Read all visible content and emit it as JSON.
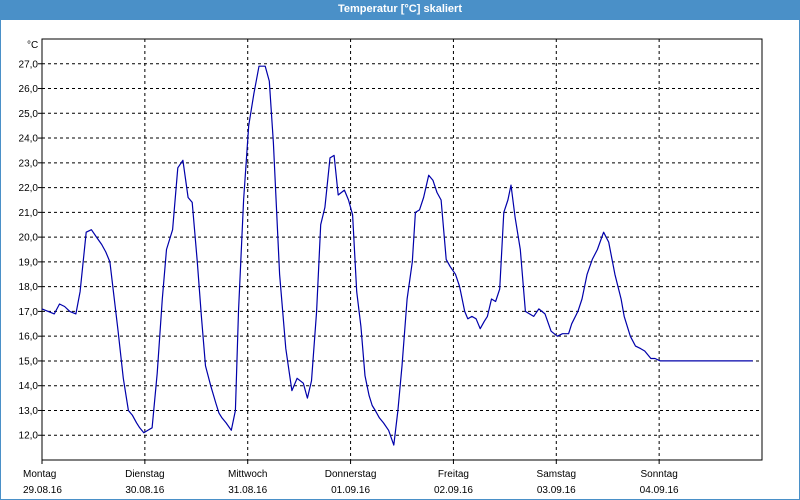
{
  "window": {
    "title": "Temperatur [°C] skaliert"
  },
  "chart_data": {
    "type": "line",
    "title": "Temperatur [°C] skaliert",
    "ylabel": "°C",
    "xlabel": "",
    "ylim": [
      11.0,
      28.0
    ],
    "yticks": [
      "12,0",
      "13,0",
      "14,0",
      "15,0",
      "16,0",
      "17,0",
      "18,0",
      "19,0",
      "20,0",
      "21,0",
      "22,0",
      "23,0",
      "24,0",
      "25,0",
      "26,0",
      "27,0"
    ],
    "xlim": [
      0,
      7
    ],
    "day_ticks": [
      {
        "day": "Montag",
        "date": "29.08.16"
      },
      {
        "day": "Dienstag",
        "date": "30.08.16"
      },
      {
        "day": "Mittwoch",
        "date": "31.08.16"
      },
      {
        "day": "Donnerstag",
        "date": "01.09.16"
      },
      {
        "day": "Freitag",
        "date": "02.09.16"
      },
      {
        "day": "Samstag",
        "date": "03.09.16"
      },
      {
        "day": "Sonntag",
        "date": "04.09.16"
      }
    ],
    "grid": true,
    "line_color": "#0000aa",
    "series": [
      {
        "x": [
          0.0,
          0.06,
          0.12,
          0.17,
          0.22,
          0.27,
          0.33,
          0.37,
          0.43,
          0.48,
          0.53,
          0.58,
          0.62,
          0.66,
          0.7,
          0.74,
          0.79,
          0.84,
          0.88,
          0.92,
          0.95,
          0.99,
          1.03,
          1.07,
          1.12,
          1.17,
          1.21,
          1.27,
          1.32,
          1.37,
          1.42,
          1.46,
          1.51,
          1.55,
          1.59,
          1.64,
          1.69,
          1.72,
          1.75,
          1.79,
          1.84,
          1.88,
          1.91,
          1.96,
          2.01,
          2.06,
          2.11,
          2.17,
          2.21,
          2.25,
          2.31,
          2.37,
          2.43,
          2.48,
          2.54,
          2.58,
          2.62,
          2.67,
          2.71,
          2.75,
          2.8,
          2.84,
          2.88,
          2.94,
          2.98,
          3.02,
          3.06,
          3.1,
          3.14,
          3.18,
          3.21,
          3.24,
          3.28,
          3.32,
          3.37,
          3.42,
          3.46,
          3.5,
          3.55,
          3.6,
          3.63,
          3.67,
          3.71,
          3.76,
          3.8,
          3.84,
          3.88,
          3.93,
          3.97,
          4.02,
          4.06,
          4.11,
          4.14,
          4.18,
          4.22,
          4.26,
          4.3,
          4.33,
          4.37,
          4.41,
          4.45,
          4.49,
          4.53,
          4.56,
          4.6,
          4.65,
          4.7,
          4.74,
          4.78,
          4.83,
          4.89,
          4.95,
          5.01,
          5.06,
          5.12,
          5.15,
          5.21,
          5.25,
          5.3,
          5.35,
          5.4,
          5.46,
          5.51,
          5.57,
          5.63,
          5.66,
          5.72,
          5.77,
          5.82,
          5.86,
          5.92,
          5.96,
          6.01,
          6.06,
          6.11,
          6.17,
          6.22,
          6.27,
          6.32,
          6.38,
          6.44,
          6.48,
          6.53,
          6.58,
          6.62,
          6.67,
          6.71,
          6.75,
          6.8,
          6.85,
          6.91,
          6.96,
          7.0
        ],
        "y": [
          17.1,
          17.0,
          16.9,
          17.3,
          17.2,
          17.0,
          16.9,
          17.8,
          20.2,
          20.3,
          20.0,
          19.7,
          19.4,
          19.0,
          17.6,
          16.2,
          14.3,
          13.0,
          12.8,
          12.5,
          12.3,
          12.1,
          12.2,
          12.3,
          14.5,
          17.5,
          19.5,
          20.3,
          22.8,
          23.1,
          21.6,
          21.4,
          19.0,
          16.8,
          14.8,
          14.0,
          13.3,
          12.9,
          12.7,
          12.5,
          12.2,
          13.0,
          17.0,
          21.5,
          24.5,
          25.8,
          26.9,
          26.9,
          26.3,
          23.8,
          18.5,
          15.5,
          13.8,
          14.3,
          14.1,
          13.5,
          14.2,
          17.0,
          20.5,
          21.2,
          23.2,
          23.3,
          21.7,
          21.9,
          21.5,
          20.9,
          17.8,
          16.4,
          14.4,
          13.6,
          13.2,
          13.0,
          12.7,
          12.5,
          12.2,
          11.6,
          13.0,
          14.8,
          17.5,
          19.0,
          21.0,
          21.1,
          21.6,
          22.5,
          22.3,
          21.8,
          21.5,
          19.1,
          18.8,
          18.5,
          18.0,
          17.0,
          16.7,
          16.8,
          16.7,
          16.3,
          16.6,
          16.8,
          17.5,
          17.4,
          17.9,
          21.0,
          21.5,
          22.1,
          20.8,
          19.5,
          17.0,
          16.9,
          16.8,
          17.1,
          16.9,
          16.2,
          16.0,
          16.1,
          16.1,
          16.5,
          17.0,
          17.5,
          18.5,
          19.1,
          19.5,
          20.2,
          19.8,
          18.5,
          17.5,
          16.8,
          16.0,
          15.6,
          15.5,
          15.4,
          15.1,
          15.1,
          15.0,
          15.0,
          15.0,
          15.0,
          15.0,
          15.0,
          15.0,
          15.0,
          15.0,
          15.0,
          15.0,
          15.0,
          15.0,
          15.0,
          15.0,
          15.0,
          15.0,
          15.0,
          15.0,
          15.0,
          15.0
        ]
      }
    ]
  }
}
